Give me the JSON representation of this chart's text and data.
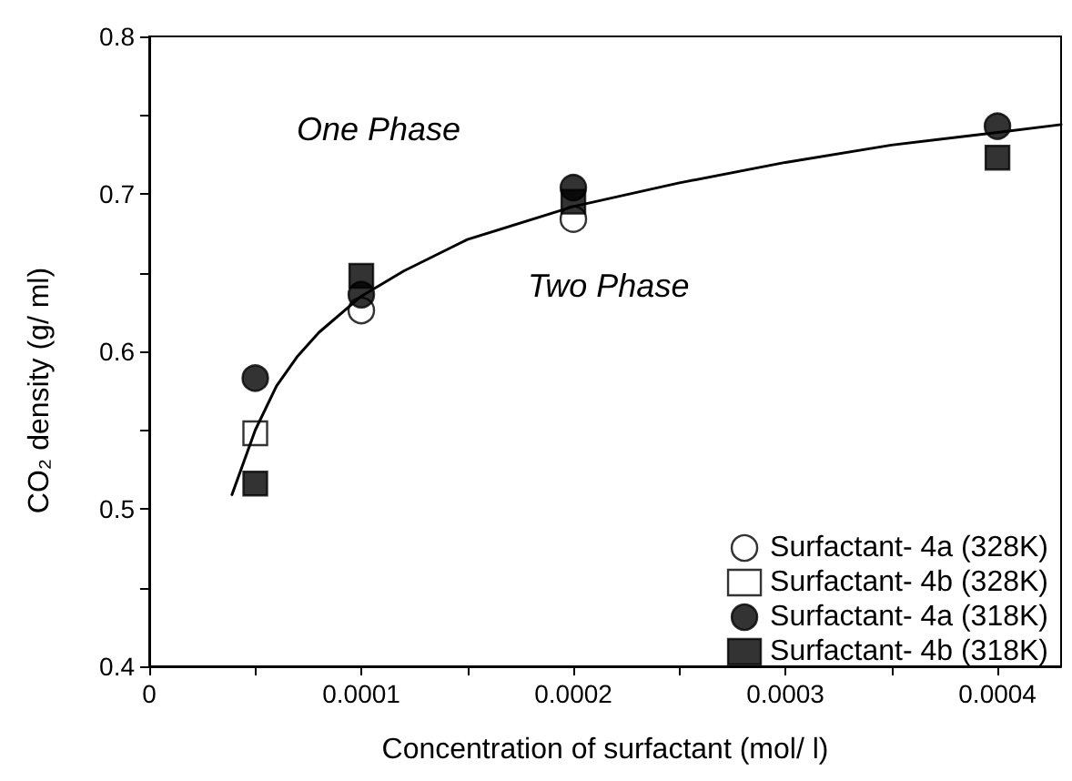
{
  "chart_data": {
    "type": "scatter",
    "xlabel": "Concentration of surfactant (mol/ l)",
    "ylabel": "CO₂ density (g/ ml)",
    "xlim": [
      0,
      0.00043
    ],
    "xticks": [
      0,
      {
        "value": 5e-05,
        "label": null
      },
      0.0001,
      {
        "value": 0.00015,
        "label": null
      },
      0.0002,
      {
        "value": 0.00025,
        "label": null
      },
      0.0003,
      {
        "value": 0.00035,
        "label": null
      },
      0.0004
    ],
    "ylim": [
      0.4,
      0.8
    ],
    "yticks": [
      0.4,
      {
        "value": 0.45,
        "label": null
      },
      0.5,
      {
        "value": 0.55,
        "label": null
      },
      0.6,
      {
        "value": 0.65,
        "label": null
      },
      0.7,
      {
        "value": 0.75,
        "label": null
      },
      0.8
    ],
    "x": [
      5e-05,
      0.0001,
      0.0002,
      0.0004
    ],
    "series": [
      {
        "name": "Surfactant- 4a (328K)",
        "color": "#ffffff",
        "marker": "circle",
        "values": [
          null,
          0.626,
          0.684,
          null
        ]
      },
      {
        "name": "Surfactant- 4b (328K)",
        "color": "#ffffff",
        "marker": "square",
        "values": [
          0.548,
          null,
          null,
          null
        ]
      },
      {
        "name": "Surfactant- 4a (318K)",
        "color": "#000000",
        "marker": "circle",
        "values": [
          0.583,
          0.636,
          0.704,
          0.743
        ]
      },
      {
        "name": "Surfactant- 4b (318K)",
        "color": "#000000",
        "marker": "square",
        "values": [
          0.516,
          0.648,
          0.695,
          0.723
        ]
      },
      {
        "type": "line",
        "color": "#000000",
        "marker": "none",
        "line_style": "solid",
        "x": [
          3.9e-05,
          5e-05,
          6e-05,
          7e-05,
          8e-05,
          0.0001,
          0.00012,
          0.00015,
          0.0002,
          0.00025,
          0.0003,
          0.00035,
          0.0004,
          0.00043
        ],
        "values": [
          0.509,
          0.55,
          0.578,
          0.597,
          0.612,
          0.635,
          0.651,
          0.671,
          0.692,
          0.707,
          0.72,
          0.731,
          0.739,
          0.744
        ]
      }
    ],
    "annotations": [
      "One Phase",
      "Two Phase"
    ],
    "legend": "bottom right",
    "grid": false
  }
}
